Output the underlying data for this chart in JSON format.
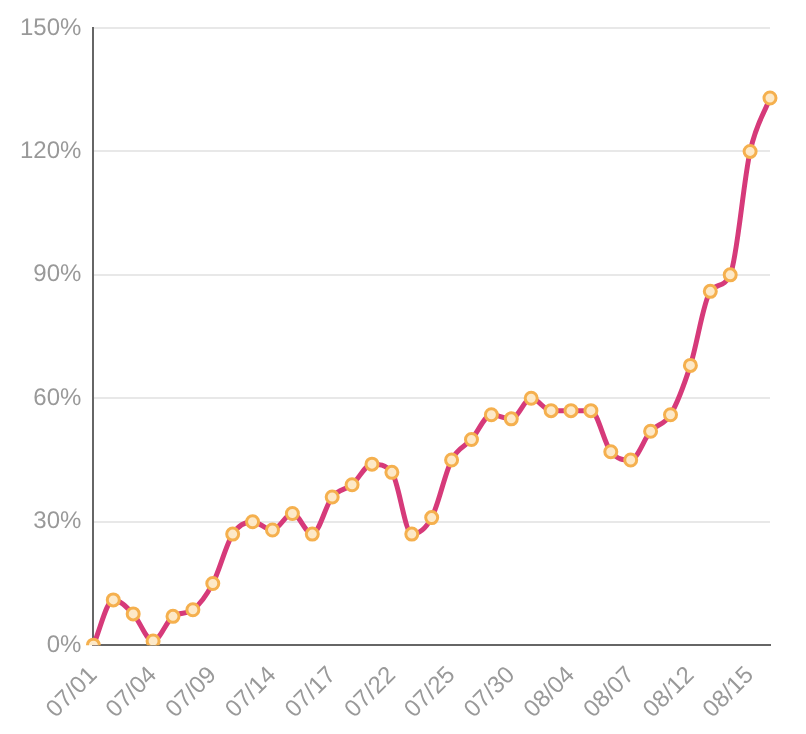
{
  "chart_data": {
    "type": "line",
    "categories": [
      "07/01",
      null,
      null,
      "07/04",
      null,
      null,
      "07/09",
      null,
      null,
      "07/14",
      null,
      null,
      "07/17",
      null,
      null,
      "07/22",
      null,
      null,
      "07/25",
      null,
      null,
      "07/30",
      null,
      null,
      "08/04",
      null,
      null,
      "08/07",
      null,
      null,
      "08/12",
      null,
      null,
      "08/15",
      null
    ],
    "series": [
      {
        "color": "#d63a7a",
        "values": [
          0,
          11,
          7.6,
          1,
          7,
          8.6,
          15,
          27,
          30,
          28,
          32,
          27,
          36,
          39,
          44,
          42,
          27,
          31,
          45,
          50,
          56,
          55,
          60,
          57,
          57,
          57,
          47,
          45,
          52,
          56,
          68,
          86,
          90,
          120,
          133
        ]
      }
    ],
    "ylim": [
      0,
      150
    ],
    "yticks": [
      {
        "value": 0,
        "label": "0%"
      },
      {
        "value": 30,
        "label": "30%"
      },
      {
        "value": 60,
        "label": "60%"
      },
      {
        "value": 90,
        "label": "90%"
      },
      {
        "value": 120,
        "label": "120%"
      },
      {
        "value": 150,
        "label": "150%"
      }
    ],
    "grid": "y",
    "marker": "circle",
    "line_style": "solid"
  }
}
